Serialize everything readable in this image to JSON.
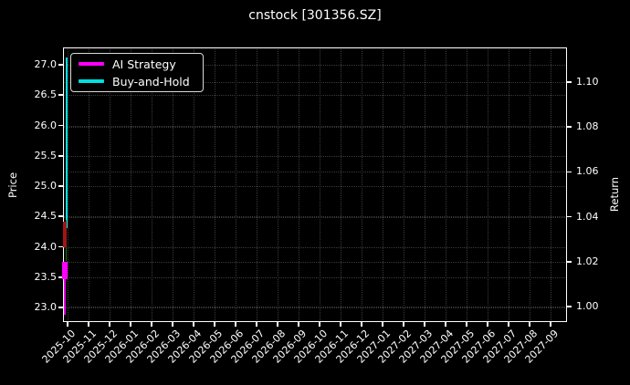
{
  "chart_data": {
    "type": "line",
    "title": "cnstock [301356.SZ]",
    "background_color": "#000000",
    "text_color": "#ffffff",
    "grid_color": "#3b3b3b",
    "grid_style": "dotted",
    "x_axis": {
      "tick_labels": [
        "2025-10",
        "2025-11",
        "2025-12",
        "2026-01",
        "2026-02",
        "2026-03",
        "2026-04",
        "2026-05",
        "2026-06",
        "2026-07",
        "2026-08",
        "2026-09",
        "2026-10",
        "2026-11",
        "2026-12",
        "2027-01",
        "2027-02",
        "2027-03",
        "2027-04",
        "2027-05",
        "2027-06",
        "2027-07",
        "2027-08",
        "2027-09"
      ],
      "tick_rotation_deg": 45
    },
    "left_axis": {
      "label": "Price",
      "tick_labels": [
        "27.0",
        "26.5",
        "26.0",
        "25.5",
        "25.0",
        "24.5",
        "24.0",
        "23.5",
        "23.0"
      ],
      "tick_values": [
        27.0,
        26.5,
        26.0,
        25.5,
        25.0,
        24.5,
        24.0,
        23.5,
        23.0
      ],
      "range": [
        22.76,
        27.29
      ]
    },
    "right_axis": {
      "label": "Return",
      "tick_labels": [
        "1.10",
        "1.08",
        "1.06",
        "1.04",
        "1.02",
        "1.00"
      ],
      "tick_values": [
        1.1,
        1.08,
        1.06,
        1.04,
        1.02,
        1.0
      ],
      "range": [
        0.993,
        1.115
      ]
    },
    "legend": {
      "position": "upper-left",
      "items": [
        {
          "label": "AI Strategy",
          "color": "#ff00ff"
        },
        {
          "label": "Buy-and-Hold",
          "color": "#00e0e0"
        }
      ]
    },
    "series": [
      {
        "name": "AI Strategy",
        "axis": "right",
        "color": "#ff00ff",
        "x_period": "2025-10",
        "approx_value_range": [
          0.996,
          1.02
        ]
      },
      {
        "name": "Buy-and-Hold",
        "axis": "right",
        "color": "#00e0e0",
        "x_period": "2025-10",
        "approx_value_range": [
          1.035,
          1.111
        ]
      }
    ],
    "candlestick_overlay": {
      "axis": "left",
      "x_period": "2025-10",
      "down_color": "#a31515",
      "up_color": "#0e7a12",
      "approx_price_range": [
        23.77,
        24.45
      ]
    },
    "marks": [
      {
        "name": "buy-and-hold-spike",
        "axis": "return",
        "v0": 1.111,
        "v1": 1.035,
        "dx": 2.5,
        "width": 2.5,
        "color": "#00e0e0"
      },
      {
        "name": "candle-wick",
        "axis": "price",
        "v0": 24.45,
        "v1": 23.77,
        "dx": 2.8,
        "width": 1.5,
        "color": "#0e7a12"
      },
      {
        "name": "candle-body",
        "axis": "price",
        "v0": 24.41,
        "v1": 23.99,
        "dx": 0.4,
        "width": 3.2,
        "color": "#a31515"
      },
      {
        "name": "ai-strategy-blob",
        "axis": "return",
        "v0": 1.02,
        "v1": 1.012,
        "dx": -1.2,
        "width": 6.0,
        "color": "#ff00ff"
      },
      {
        "name": "ai-strategy-tail",
        "axis": "return",
        "v0": 1.012,
        "v1": 0.9965,
        "dx": 0.8,
        "width": 2.0,
        "color": "#e000e0"
      }
    ]
  }
}
